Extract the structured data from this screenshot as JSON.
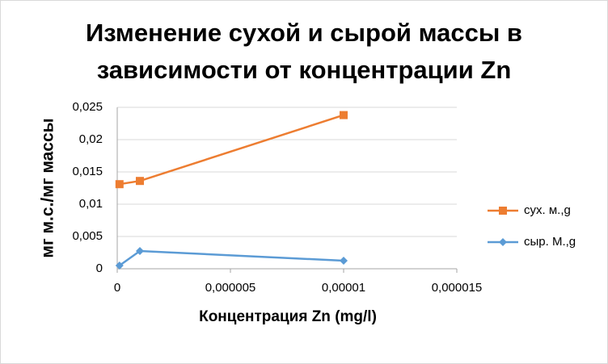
{
  "chart_data": {
    "type": "scatter",
    "title": "Изменение сухой и сырой массы в зависимости от концентрации Zn",
    "x_label": "Концентрация Zn (mg/l)",
    "y_label": "мг м.с./мг массы",
    "series": [
      {
        "name": "сух. м.,g",
        "color": "#ed7d31",
        "marker": "square",
        "x": [
          1e-07,
          1e-06,
          1e-05
        ],
        "values": [
          0.0131,
          0.0136,
          0.0238
        ]
      },
      {
        "name": "сыр. М.,g",
        "color": "#5b9bd5",
        "marker": "diamond",
        "x": [
          1e-07,
          1e-06,
          1e-05
        ],
        "values": [
          0.0005,
          0.00275,
          0.00125
        ]
      }
    ],
    "xlim": [
      0,
      1.5e-05
    ],
    "xticks": [
      0,
      {
        "value": 5e-06,
        "label": "0,000005"
      },
      {
        "value": 1e-05,
        "label": "0,00001"
      },
      {
        "value": 1.5e-05,
        "label": "0,000015"
      }
    ],
    "ylim": [
      0,
      0.025
    ],
    "yticks": [
      0,
      {
        "value": 0.005,
        "label": "0,005"
      },
      {
        "value": 0.01,
        "label": "0,01"
      },
      {
        "value": 0.015,
        "label": "0,015"
      },
      {
        "value": 0.02,
        "label": "0,02"
      },
      {
        "value": 0.025,
        "label": "0,025"
      }
    ],
    "grid": true,
    "legend": "right"
  }
}
